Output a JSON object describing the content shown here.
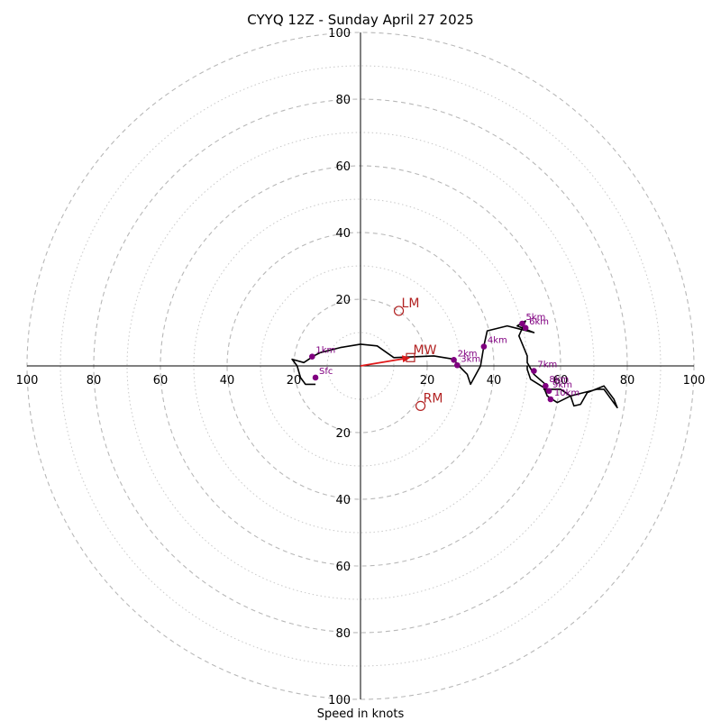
{
  "chart_data": {
    "type": "hodograph",
    "title": "CYYQ 12Z - Sunday April 27 2025",
    "xlabel": "Speed in knots",
    "ring_labels_x": [
      "100",
      "80",
      "60",
      "40",
      "20",
      "20",
      "40",
      "60",
      "80",
      "100"
    ],
    "ring_labels_y": [
      "100",
      "80",
      "60",
      "40",
      "20",
      "20",
      "40",
      "60",
      "80",
      "100"
    ],
    "ring_values": [
      -100,
      -80,
      -60,
      -40,
      -20,
      20,
      40,
      60,
      80,
      100
    ],
    "major_rings": [
      20,
      40,
      60,
      80,
      100
    ],
    "minor_rings": [
      10,
      30,
      50,
      70,
      90
    ],
    "axis_range": [
      -100,
      100
    ],
    "units": "knots",
    "hodograph_trace": [
      [
        -13.5,
        -5.5
      ],
      [
        -16.5,
        -5.5
      ],
      [
        -18,
        -3.5
      ],
      [
        -19,
        0
      ],
      [
        -20.5,
        2
      ],
      [
        -17,
        1
      ],
      [
        -14,
        3
      ],
      [
        -12,
        4
      ],
      [
        -6,
        5.5
      ],
      [
        0,
        6.5
      ],
      [
        5,
        6
      ],
      [
        10,
        2.5
      ],
      [
        22,
        3
      ],
      [
        28,
        2
      ],
      [
        29,
        0.5
      ],
      [
        32,
        -2.5
      ],
      [
        33,
        -5.5
      ],
      [
        36,
        0
      ],
      [
        37,
        6
      ],
      [
        38,
        10.5
      ],
      [
        44,
        12
      ],
      [
        48,
        11
      ],
      [
        52,
        10
      ],
      [
        47,
        12
      ],
      [
        49.5,
        13.5
      ],
      [
        47.5,
        9
      ],
      [
        50,
        3
      ],
      [
        50,
        1
      ],
      [
        52,
        -2.5
      ],
      [
        56,
        -6
      ],
      [
        55,
        -7
      ],
      [
        58,
        -7
      ],
      [
        60,
        -7
      ],
      [
        63,
        -9
      ],
      [
        64,
        -12
      ],
      [
        66,
        -11.5
      ],
      [
        68,
        -8
      ],
      [
        73,
        -6
      ],
      [
        76,
        -10
      ],
      [
        77,
        -12.5
      ],
      [
        73,
        -7
      ],
      [
        71,
        -7
      ],
      [
        63,
        -9
      ],
      [
        59,
        -11
      ],
      [
        56,
        -9
      ],
      [
        55,
        -6.5
      ],
      [
        51,
        -4
      ],
      [
        50,
        -1
      ],
      [
        50,
        0
      ]
    ],
    "height_markers": [
      {
        "label": "Sfc",
        "u": -13.5,
        "v": -3.5
      },
      {
        "label": "1km",
        "u": -14.5,
        "v": 2.8
      },
      {
        "label": "2km",
        "u": 28,
        "v": 1.8
      },
      {
        "label": "3km",
        "u": 29,
        "v": 0.2
      },
      {
        "label": "4km",
        "u": 37,
        "v": 5.8
      },
      {
        "label": "5km",
        "u": 48.5,
        "v": 12.7
      },
      {
        "label": "6km",
        "u": 49.5,
        "v": 11.4
      },
      {
        "label": "7km",
        "u": 52,
        "v": -1.5
      },
      {
        "label": "8km",
        "u": 55.5,
        "v": -6
      },
      {
        "label": "9km",
        "u": 56.5,
        "v": -7.5
      },
      {
        "label": "10km",
        "u": 57,
        "v": -10
      }
    ],
    "storm_motion": [
      {
        "label": "LM",
        "u": 11.5,
        "v": 16.5,
        "marker": "circle"
      },
      {
        "label": "MW",
        "u": 15,
        "v": 2.5,
        "marker": "square"
      },
      {
        "label": "RM",
        "u": 18,
        "v": -12,
        "marker": "circle"
      }
    ],
    "colors": {
      "trace": "#000000",
      "markers": "#800080",
      "storm": "#b22222",
      "arrow": "#e0191a",
      "grid_major": "#b8b8b8",
      "grid_minor": "#c8c8c8",
      "axes": "#000000"
    }
  }
}
